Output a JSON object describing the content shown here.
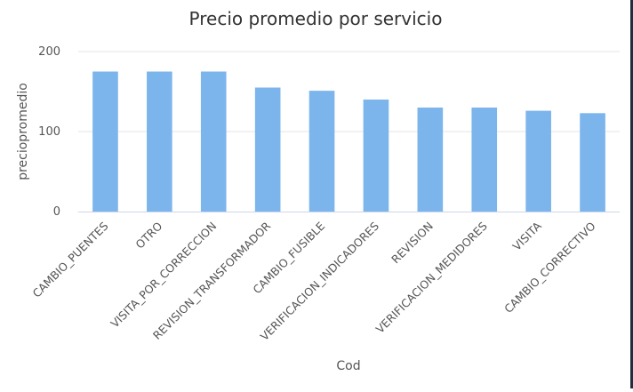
{
  "chart_data": {
    "type": "bar",
    "title": "Precio promedio por servicio",
    "xlabel": "Cod",
    "ylabel": "preciopromedio",
    "categories": [
      "CAMBIO_PUENTES",
      "OTRO",
      "VISITA_POR_CORRECCION",
      "REVISION_TRANSFORMADOR",
      "CAMBIO_FUSIBLE",
      "VERIFICACION_INDICADORES",
      "REVISION",
      "VERIFICACION_MEDIDORES",
      "VISITA",
      "CAMBIO_CORRECTIVO"
    ],
    "values": [
      175,
      175,
      175,
      155,
      151,
      140,
      130,
      130,
      126,
      123
    ],
    "ylim": [
      0,
      200
    ],
    "yticks": [
      0,
      100,
      200
    ],
    "grid": true,
    "bar_color": "#7cb5ec",
    "legend": "none"
  }
}
